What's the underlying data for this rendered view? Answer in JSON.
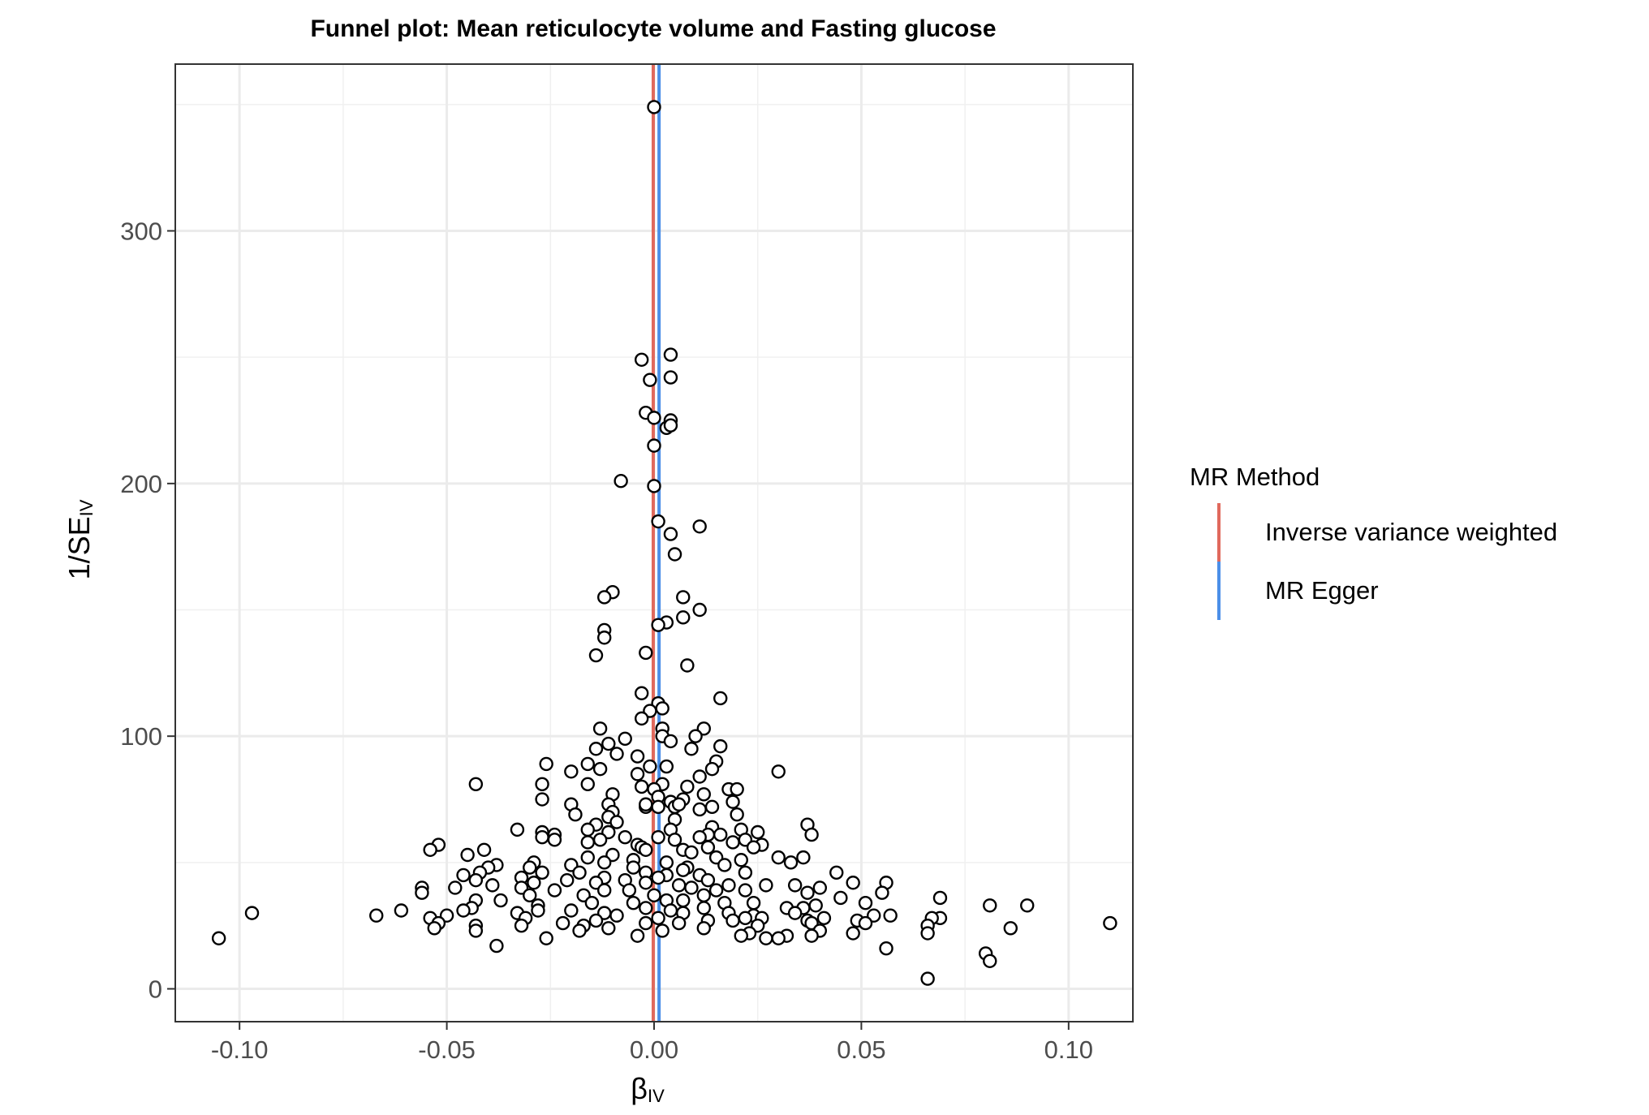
{
  "chart_data": {
    "type": "scatter",
    "title": "Funnel plot: Mean reticulocyte volume and Fasting glucose",
    "xlabel": {
      "main": "β",
      "sub": "IV"
    },
    "ylabel": {
      "main": "1/SE",
      "sub": "IV"
    },
    "xlim": [
      -0.1155,
      0.1155
    ],
    "ylim": [
      -13,
      366
    ],
    "x_ticks": [
      -0.1,
      -0.05,
      0.0,
      0.05,
      0.1
    ],
    "x_tick_labels": [
      "-0.10",
      "-0.05",
      "0.00",
      "0.05",
      "0.10"
    ],
    "y_ticks": [
      0,
      100,
      200,
      300
    ],
    "y_tick_labels": [
      "0",
      "100",
      "200",
      "300"
    ],
    "grid": true,
    "legend": {
      "title": "MR Method",
      "position": "right",
      "entries": [
        {
          "label": "Inverse variance weighted",
          "color": "#E0695D"
        },
        {
          "label": "MR Egger",
          "color": "#4B8FE8"
        }
      ]
    },
    "vlines": [
      {
        "method": "Inverse variance weighted",
        "x": -0.0002,
        "color": "#E0695D"
      },
      {
        "method": "MR Egger",
        "x": 0.0012,
        "color": "#4B8FE8"
      }
    ],
    "points": [
      [
        0.0,
        349
      ],
      [
        0.004,
        251
      ],
      [
        -0.003,
        249
      ],
      [
        0.004,
        242
      ],
      [
        -0.001,
        241
      ],
      [
        -0.002,
        228
      ],
      [
        0.0,
        226
      ],
      [
        0.004,
        225
      ],
      [
        0.003,
        222
      ],
      [
        0.004,
        223
      ],
      [
        0.0,
        215
      ],
      [
        -0.008,
        201
      ],
      [
        0.0,
        199
      ],
      [
        0.001,
        185
      ],
      [
        0.011,
        183
      ],
      [
        0.004,
        180
      ],
      [
        0.005,
        172
      ],
      [
        -0.01,
        157
      ],
      [
        -0.012,
        155
      ],
      [
        0.007,
        155
      ],
      [
        0.011,
        150
      ],
      [
        0.007,
        147
      ],
      [
        0.003,
        145
      ],
      [
        0.001,
        144
      ],
      [
        -0.012,
        142
      ],
      [
        -0.012,
        139
      ],
      [
        -0.002,
        133
      ],
      [
        -0.014,
        132
      ],
      [
        0.008,
        128
      ],
      [
        0.016,
        115
      ],
      [
        -0.003,
        117
      ],
      [
        0.001,
        113
      ],
      [
        0.002,
        111
      ],
      [
        -0.001,
        110
      ],
      [
        -0.003,
        107
      ],
      [
        0.002,
        103
      ],
      [
        0.012,
        103
      ],
      [
        -0.013,
        103
      ],
      [
        0.002,
        100
      ],
      [
        0.01,
        100
      ],
      [
        -0.007,
        99
      ],
      [
        0.004,
        98
      ],
      [
        -0.011,
        97
      ],
      [
        0.016,
        96
      ],
      [
        -0.014,
        95
      ],
      [
        0.009,
        95
      ],
      [
        -0.009,
        93
      ],
      [
        0.015,
        90
      ],
      [
        -0.016,
        89
      ],
      [
        -0.004,
        92
      ],
      [
        0.003,
        88
      ],
      [
        -0.001,
        88
      ],
      [
        -0.026,
        89
      ],
      [
        0.014,
        87
      ],
      [
        -0.013,
        87
      ],
      [
        0.03,
        86
      ],
      [
        -0.02,
        86
      ],
      [
        -0.004,
        85
      ],
      [
        0.011,
        84
      ],
      [
        -0.016,
        81
      ],
      [
        0.002,
        81
      ],
      [
        -0.043,
        81
      ],
      [
        -0.027,
        81
      ],
      [
        -0.003,
        80
      ],
      [
        0.008,
        80
      ],
      [
        0.018,
        79
      ],
      [
        0.02,
        79
      ],
      [
        0.0,
        79
      ],
      [
        -0.01,
        77
      ],
      [
        0.012,
        77
      ],
      [
        0.001,
        76
      ],
      [
        -0.027,
        75
      ],
      [
        0.007,
        75
      ],
      [
        0.004,
        74
      ],
      [
        0.019,
        74
      ],
      [
        -0.011,
        73
      ],
      [
        -0.02,
        73
      ],
      [
        0.005,
        72
      ],
      [
        -0.002,
        72
      ],
      [
        0.006,
        73
      ],
      [
        -0.01,
        70
      ],
      [
        0.001,
        72
      ],
      [
        0.014,
        72
      ],
      [
        0.011,
        71
      ],
      [
        0.02,
        69
      ],
      [
        -0.002,
        73
      ],
      [
        -0.019,
        69
      ],
      [
        -0.011,
        68
      ],
      [
        0.005,
        67
      ],
      [
        0.037,
        65
      ],
      [
        -0.009,
        66
      ],
      [
        -0.014,
        65
      ],
      [
        0.014,
        64
      ],
      [
        -0.016,
        63
      ],
      [
        -0.033,
        63
      ],
      [
        0.021,
        63
      ],
      [
        0.025,
        62
      ],
      [
        0.004,
        63
      ],
      [
        -0.027,
        62
      ],
      [
        -0.011,
        62
      ],
      [
        -0.024,
        61
      ],
      [
        0.013,
        61
      ],
      [
        0.038,
        61
      ],
      [
        0.016,
        61
      ],
      [
        -0.007,
        60
      ],
      [
        0.011,
        60
      ],
      [
        -0.027,
        60
      ],
      [
        0.001,
        60
      ],
      [
        -0.013,
        59
      ],
      [
        -0.024,
        59
      ],
      [
        0.005,
        59
      ],
      [
        0.022,
        59
      ],
      [
        -0.016,
        58
      ],
      [
        0.019,
        58
      ],
      [
        -0.004,
        57
      ],
      [
        0.026,
        57
      ],
      [
        -0.052,
        57
      ],
      [
        -0.003,
        56
      ],
      [
        0.013,
        56
      ],
      [
        0.007,
        55
      ],
      [
        -0.054,
        55
      ],
      [
        0.024,
        56
      ],
      [
        -0.041,
        55
      ],
      [
        -0.002,
        55
      ],
      [
        0.009,
        54
      ],
      [
        -0.01,
        53
      ],
      [
        0.015,
        52
      ],
      [
        -0.045,
        53
      ],
      [
        0.03,
        52
      ],
      [
        -0.016,
        52
      ],
      [
        0.036,
        52
      ],
      [
        0.021,
        51
      ],
      [
        -0.005,
        51
      ],
      [
        0.003,
        50
      ],
      [
        0.033,
        50
      ],
      [
        -0.029,
        50
      ],
      [
        -0.012,
        50
      ],
      [
        -0.038,
        49
      ],
      [
        -0.02,
        49
      ],
      [
        0.017,
        49
      ],
      [
        -0.005,
        48
      ],
      [
        0.008,
        48
      ],
      [
        -0.04,
        48
      ],
      [
        -0.03,
        48
      ],
      [
        0.007,
        47
      ],
      [
        -0.018,
        46
      ],
      [
        -0.042,
        46
      ],
      [
        0.044,
        46
      ],
      [
        -0.002,
        46
      ],
      [
        0.022,
        46
      ],
      [
        -0.027,
        46
      ],
      [
        0.003,
        45
      ],
      [
        -0.046,
        45
      ],
      [
        0.011,
        45
      ],
      [
        -0.012,
        44
      ],
      [
        -0.032,
        44
      ],
      [
        0.001,
        44
      ],
      [
        0.013,
        43
      ],
      [
        -0.043,
        43
      ],
      [
        -0.007,
        43
      ],
      [
        -0.021,
        43
      ],
      [
        0.056,
        42
      ],
      [
        0.048,
        42
      ],
      [
        -0.029,
        42
      ],
      [
        -0.002,
        42
      ],
      [
        -0.014,
        42
      ],
      [
        0.006,
        41
      ],
      [
        0.034,
        41
      ],
      [
        -0.039,
        41
      ],
      [
        0.018,
        41
      ],
      [
        0.027,
        41
      ],
      [
        0.04,
        40
      ],
      [
        -0.056,
        40
      ],
      [
        -0.048,
        40
      ],
      [
        -0.032,
        40
      ],
      [
        0.009,
        40
      ],
      [
        -0.024,
        39
      ],
      [
        -0.006,
        39
      ],
      [
        -0.012,
        39
      ],
      [
        0.015,
        39
      ],
      [
        0.055,
        38
      ],
      [
        0.022,
        39
      ],
      [
        -0.056,
        38
      ],
      [
        0.037,
        38
      ],
      [
        -0.017,
        37
      ],
      [
        0.0,
        37
      ],
      [
        0.012,
        37
      ],
      [
        -0.03,
        37
      ],
      [
        0.069,
        36
      ],
      [
        0.045,
        36
      ],
      [
        -0.043,
        35
      ],
      [
        0.003,
        35
      ],
      [
        -0.037,
        35
      ],
      [
        0.007,
        35
      ],
      [
        -0.015,
        34
      ],
      [
        0.051,
        34
      ],
      [
        0.024,
        34
      ],
      [
        -0.005,
        34
      ],
      [
        0.017,
        34
      ],
      [
        -0.028,
        33
      ],
      [
        0.09,
        33
      ],
      [
        0.081,
        33
      ],
      [
        0.039,
        33
      ],
      [
        -0.044,
        32
      ],
      [
        -0.002,
        32
      ],
      [
        0.032,
        32
      ],
      [
        0.012,
        32
      ],
      [
        0.036,
        32
      ],
      [
        -0.02,
        31
      ],
      [
        0.004,
        31
      ],
      [
        -0.046,
        31
      ],
      [
        -0.061,
        31
      ],
      [
        -0.028,
        31
      ],
      [
        -0.012,
        30
      ],
      [
        0.018,
        30
      ],
      [
        0.007,
        30
      ],
      [
        0.034,
        30
      ],
      [
        -0.097,
        30
      ],
      [
        -0.033,
        30
      ],
      [
        0.057,
        29
      ],
      [
        -0.009,
        29
      ],
      [
        -0.05,
        29
      ],
      [
        0.053,
        29
      ],
      [
        -0.067,
        29
      ],
      [
        0.024,
        29
      ],
      [
        0.069,
        28
      ],
      [
        0.001,
        28
      ],
      [
        0.041,
        28
      ],
      [
        -0.031,
        28
      ],
      [
        0.067,
        28
      ],
      [
        0.022,
        28
      ],
      [
        0.026,
        28
      ],
      [
        -0.054,
        28
      ],
      [
        0.037,
        27
      ],
      [
        -0.014,
        27
      ],
      [
        0.013,
        27
      ],
      [
        0.049,
        27
      ],
      [
        0.019,
        27
      ],
      [
        -0.022,
        26
      ],
      [
        0.006,
        26
      ],
      [
        0.038,
        26
      ],
      [
        0.051,
        26
      ],
      [
        0.11,
        26
      ],
      [
        -0.002,
        26
      ],
      [
        -0.052,
        26
      ],
      [
        -0.017,
        25
      ],
      [
        -0.032,
        25
      ],
      [
        0.025,
        25
      ],
      [
        0.066,
        25
      ],
      [
        -0.043,
        25
      ],
      [
        0.086,
        24
      ],
      [
        -0.011,
        24
      ],
      [
        -0.053,
        24
      ],
      [
        0.012,
        24
      ],
      [
        -0.018,
        23
      ],
      [
        0.04,
        23
      ],
      [
        -0.043,
        23
      ],
      [
        0.002,
        23
      ],
      [
        0.023,
        22
      ],
      [
        0.066,
        22
      ],
      [
        0.048,
        22
      ],
      [
        0.021,
        21
      ],
      [
        -0.004,
        21
      ],
      [
        0.032,
        21
      ],
      [
        0.038,
        21
      ],
      [
        0.027,
        20
      ],
      [
        -0.105,
        20
      ],
      [
        -0.026,
        20
      ],
      [
        0.03,
        20
      ],
      [
        -0.038,
        17
      ],
      [
        0.056,
        16
      ],
      [
        0.08,
        14
      ],
      [
        0.081,
        11
      ],
      [
        0.066,
        4
      ]
    ]
  }
}
